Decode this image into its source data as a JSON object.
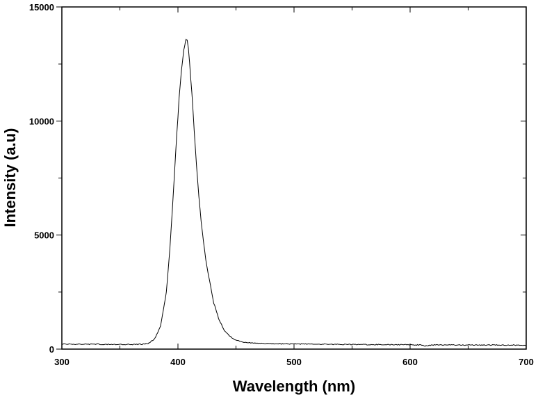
{
  "chart_data": {
    "type": "line",
    "title": "",
    "xlabel": "Wavelength (nm)",
    "ylabel": "Intensity (a.u)",
    "xlim": [
      300,
      700
    ],
    "ylim": [
      0,
      15000
    ],
    "x_ticks": [
      300,
      400,
      500,
      600,
      700
    ],
    "y_ticks": [
      0,
      5000,
      10000,
      15000
    ],
    "grid": false,
    "legend": "none",
    "line_color": "#000000",
    "series": [
      {
        "x": [
          300,
          320,
          340,
          360,
          370,
          375,
          380,
          385,
          390,
          393,
          396,
          399,
          401,
          403,
          405,
          406,
          407,
          408,
          409,
          410,
          412,
          414,
          416,
          418,
          420,
          423,
          426,
          430,
          435,
          440,
          445,
          450,
          455,
          460,
          470,
          480,
          500,
          520,
          550,
          580,
          600,
          610,
          612,
          620,
          650,
          680,
          700
        ],
        "y": [
          220,
          215,
          210,
          205,
          215,
          260,
          450,
          1000,
          2500,
          4400,
          6800,
          9400,
          11000,
          12200,
          13100,
          13400,
          13550,
          13500,
          13200,
          12600,
          11200,
          9600,
          8000,
          6700,
          5600,
          4300,
          3300,
          2200,
          1350,
          820,
          540,
          390,
          320,
          285,
          255,
          240,
          225,
          215,
          200,
          195,
          190,
          180,
          130,
          185,
          180,
          175,
          175
        ]
      }
    ]
  }
}
